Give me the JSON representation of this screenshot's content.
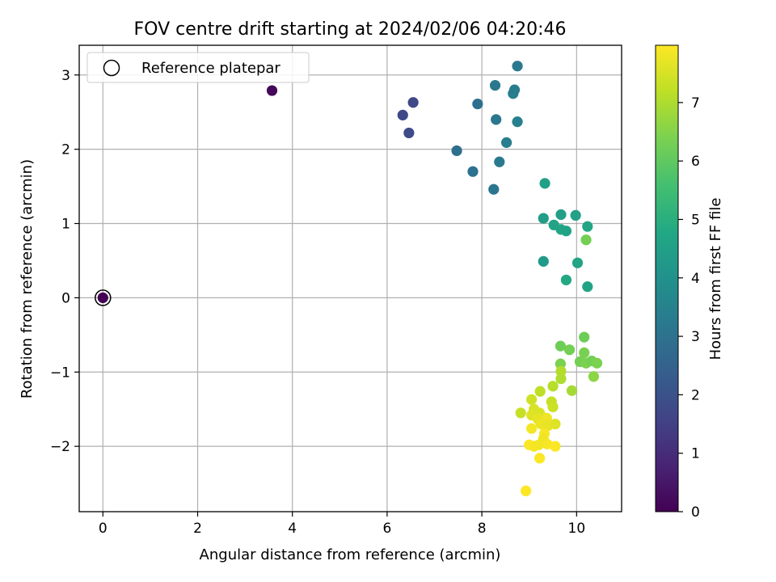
{
  "chart_data": {
    "type": "scatter",
    "title": "FOV centre drift starting at 2024/02/06 04:20:46",
    "xlabel": "Angular distance from reference (arcmin)",
    "ylabel": "Rotation from reference (arcmin)",
    "xlim": [
      -0.5,
      10.95
    ],
    "ylim": [
      -2.88,
      3.4
    ],
    "xticks": [
      0,
      2,
      4,
      6,
      8,
      10
    ],
    "yticks": [
      -2,
      -1,
      0,
      1,
      2,
      3
    ],
    "xtick_labels": [
      "0",
      "2",
      "4",
      "6",
      "8",
      "10"
    ],
    "ytick_labels": [
      "−2",
      "−1",
      "0",
      "1",
      "2",
      "3"
    ],
    "grid": true,
    "legend": {
      "placement": "top-left",
      "entries": [
        {
          "label": "Reference platepar",
          "marker": "open-circle"
        }
      ]
    },
    "colorbar": {
      "label": "Hours from first FF file",
      "colormap": "viridis",
      "range": [
        0,
        7.98
      ],
      "ticks": [
        0,
        1,
        2,
        3,
        4,
        5,
        6,
        7
      ],
      "tick_labels": [
        "0",
        "1",
        "2",
        "3",
        "4",
        "5",
        "6",
        "7"
      ]
    },
    "reference": {
      "x": 0,
      "y": 0
    },
    "points": [
      {
        "x": 0.0,
        "y": 0.0,
        "t": 0.0
      },
      {
        "x": 3.57,
        "y": 2.79,
        "t": 0.15
      },
      {
        "x": 6.33,
        "y": 2.46,
        "t": 1.7
      },
      {
        "x": 6.55,
        "y": 2.63,
        "t": 1.75
      },
      {
        "x": 6.46,
        "y": 2.22,
        "t": 1.8
      },
      {
        "x": 7.47,
        "y": 1.98,
        "t": 2.9
      },
      {
        "x": 7.81,
        "y": 1.7,
        "t": 3.0
      },
      {
        "x": 7.91,
        "y": 2.61,
        "t": 2.95
      },
      {
        "x": 8.25,
        "y": 1.46,
        "t": 3.1
      },
      {
        "x": 8.28,
        "y": 2.86,
        "t": 3.2
      },
      {
        "x": 8.3,
        "y": 2.4,
        "t": 3.15
      },
      {
        "x": 8.37,
        "y": 1.83,
        "t": 3.25
      },
      {
        "x": 8.52,
        "y": 2.09,
        "t": 3.35
      },
      {
        "x": 8.66,
        "y": 2.75,
        "t": 3.4
      },
      {
        "x": 8.69,
        "y": 2.8,
        "t": 3.3
      },
      {
        "x": 8.75,
        "y": 3.12,
        "t": 3.2
      },
      {
        "x": 8.75,
        "y": 2.37,
        "t": 3.45
      },
      {
        "x": 9.33,
        "y": 1.54,
        "t": 4.5
      },
      {
        "x": 9.3,
        "y": 1.07,
        "t": 4.4
      },
      {
        "x": 9.3,
        "y": 0.49,
        "t": 4.3
      },
      {
        "x": 9.52,
        "y": 0.98,
        "t": 4.6
      },
      {
        "x": 9.67,
        "y": 1.12,
        "t": 4.5
      },
      {
        "x": 9.67,
        "y": 0.92,
        "t": 4.7
      },
      {
        "x": 9.78,
        "y": 0.9,
        "t": 4.6
      },
      {
        "x": 9.78,
        "y": 0.24,
        "t": 4.8
      },
      {
        "x": 9.98,
        "y": 1.11,
        "t": 4.55
      },
      {
        "x": 10.02,
        "y": 0.47,
        "t": 4.65
      },
      {
        "x": 10.23,
        "y": 0.96,
        "t": 4.7
      },
      {
        "x": 10.23,
        "y": 0.15,
        "t": 4.6
      },
      {
        "x": 10.2,
        "y": 0.78,
        "t": 6.3
      },
      {
        "x": 9.66,
        "y": -0.65,
        "t": 6.2
      },
      {
        "x": 9.85,
        "y": -0.7,
        "t": 6.3
      },
      {
        "x": 9.66,
        "y": -0.89,
        "t": 6.4
      },
      {
        "x": 10.16,
        "y": -0.53,
        "t": 6.2
      },
      {
        "x": 10.07,
        "y": -0.86,
        "t": 6.3
      },
      {
        "x": 10.16,
        "y": -0.74,
        "t": 6.35
      },
      {
        "x": 10.2,
        "y": -0.88,
        "t": 6.4
      },
      {
        "x": 10.32,
        "y": -0.85,
        "t": 6.3
      },
      {
        "x": 10.43,
        "y": -0.88,
        "t": 6.4
      },
      {
        "x": 10.36,
        "y": -1.06,
        "t": 6.6
      },
      {
        "x": 9.67,
        "y": -1.09,
        "t": 7.0
      },
      {
        "x": 9.67,
        "y": -0.99,
        "t": 7.05
      },
      {
        "x": 9.5,
        "y": -1.19,
        "t": 7.1
      },
      {
        "x": 9.9,
        "y": -1.25,
        "t": 6.9
      },
      {
        "x": 9.23,
        "y": -1.26,
        "t": 7.2
      },
      {
        "x": 9.05,
        "y": -1.37,
        "t": 7.4
      },
      {
        "x": 8.82,
        "y": -1.55,
        "t": 7.3
      },
      {
        "x": 9.47,
        "y": -1.4,
        "t": 7.3
      },
      {
        "x": 9.5,
        "y": -1.47,
        "t": 7.35
      },
      {
        "x": 9.1,
        "y": -1.5,
        "t": 7.5
      },
      {
        "x": 9.05,
        "y": -1.58,
        "t": 7.6
      },
      {
        "x": 9.22,
        "y": -1.55,
        "t": 7.55
      },
      {
        "x": 9.18,
        "y": -1.63,
        "t": 7.7
      },
      {
        "x": 9.25,
        "y": -1.7,
        "t": 7.75
      },
      {
        "x": 9.37,
        "y": -1.62,
        "t": 7.8
      },
      {
        "x": 9.4,
        "y": -1.72,
        "t": 7.7
      },
      {
        "x": 9.55,
        "y": -1.7,
        "t": 7.6
      },
      {
        "x": 9.05,
        "y": -1.76,
        "t": 7.85
      },
      {
        "x": 9.32,
        "y": -1.83,
        "t": 7.9
      },
      {
        "x": 9.3,
        "y": -1.9,
        "t": 7.8
      },
      {
        "x": 9.0,
        "y": -1.98,
        "t": 7.95
      },
      {
        "x": 9.1,
        "y": -2.0,
        "t": 7.9
      },
      {
        "x": 9.2,
        "y": -1.98,
        "t": 7.85
      },
      {
        "x": 9.38,
        "y": -1.97,
        "t": 7.9
      },
      {
        "x": 9.55,
        "y": -2.0,
        "t": 7.95
      },
      {
        "x": 9.22,
        "y": -2.16,
        "t": 7.95
      },
      {
        "x": 8.93,
        "y": -2.6,
        "t": 7.98
      }
    ]
  }
}
